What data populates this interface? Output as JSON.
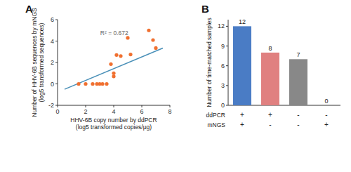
{
  "chart_data": [
    {
      "type": "scatter",
      "title": "A",
      "xlabel": [
        "HHV-6B copy number by ddPCR",
        "(log5 transformed copies/μg)"
      ],
      "ylabel": [
        "Number of HHV-6B sequences by mNGS",
        "(log5 transformed sequences)"
      ],
      "annotations": [
        "R² = 0.672"
      ],
      "series": [
        {
          "type": "scatter",
          "color": "#f07030",
          "x": [
            1.5,
            2.0,
            2.5,
            2.8,
            3.0,
            3.2,
            3.5,
            3.8,
            4.0,
            4.0,
            4.2,
            4.5,
            5.0,
            5.2,
            6.5,
            6.8,
            7.0
          ],
          "values": [
            0.0,
            0.0,
            0.0,
            0.0,
            0.0,
            0.0,
            0.0,
            1.85,
            1.0,
            0.7,
            2.7,
            2.6,
            4.3,
            2.75,
            5.0,
            4.1,
            3.35
          ]
        },
        {
          "type": "line",
          "color": "#4a90b8",
          "x": [
            0.5,
            7.5
          ],
          "values": [
            -0.5,
            3.35
          ]
        }
      ],
      "xlim": [
        0,
        8
      ],
      "ylim": [
        -2,
        6
      ],
      "xticks": [
        0,
        2,
        4,
        6,
        8
      ],
      "yticks": [
        -2,
        0,
        2,
        4,
        6
      ]
    },
    {
      "type": "bar",
      "title": "B",
      "ylabel": "Number of time-matched samples",
      "categories": [
        [
          "+",
          "+"
        ],
        [
          "+",
          "-"
        ],
        [
          "-",
          "-"
        ],
        [
          "-",
          "+"
        ]
      ],
      "category_rows": [
        "ddPCR",
        "mNGS"
      ],
      "values": [
        12,
        8,
        7,
        0
      ],
      "colors": [
        "#4a7cc5",
        "#e08080",
        "#888888",
        "#888888"
      ],
      "ylim": [
        0,
        13
      ],
      "yticks": [
        0,
        3,
        6,
        9,
        12
      ],
      "data_labels": true
    }
  ]
}
